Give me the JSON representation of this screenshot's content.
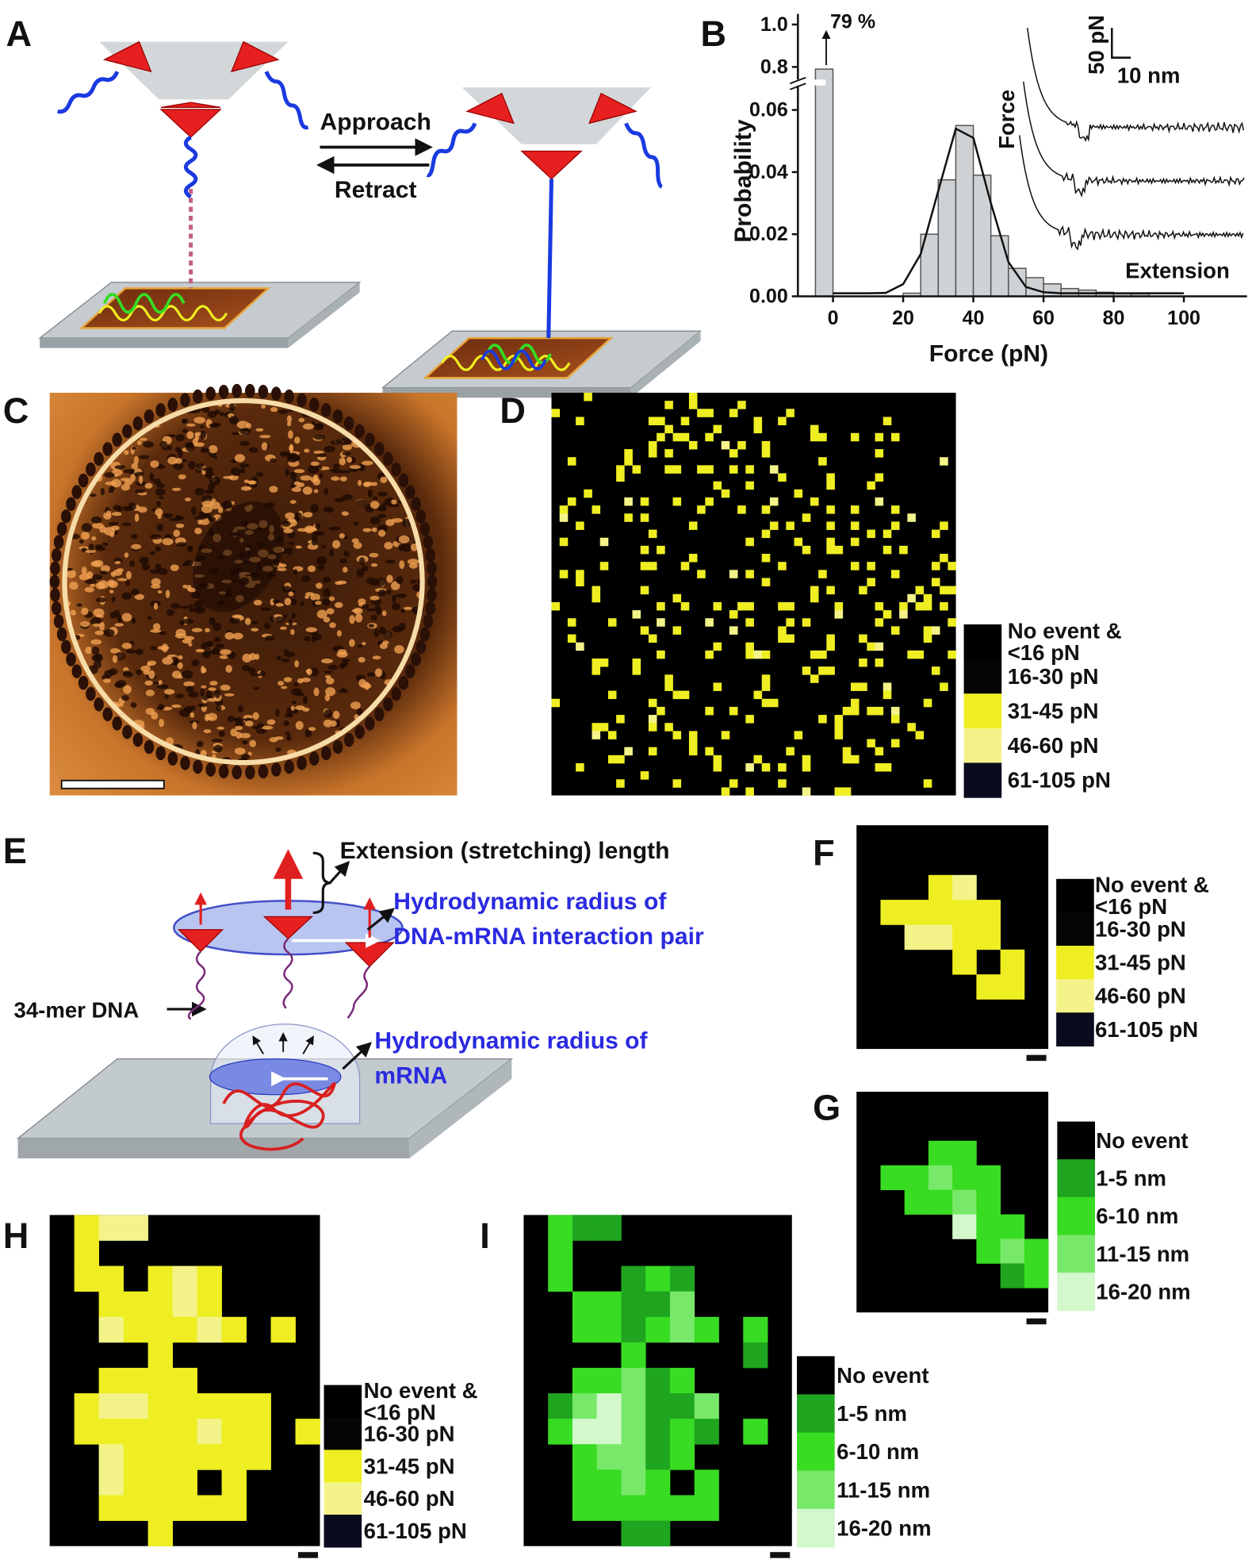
{
  "A": {
    "label": "A",
    "approach": "Approach",
    "retract": "Retract"
  },
  "B": {
    "label": "B",
    "type": "histogram",
    "ylabel": "Probability",
    "xlabel": "Force (pN)",
    "bins": [
      -5,
      0,
      5,
      10,
      15,
      20,
      25,
      30,
      35,
      40,
      45,
      50,
      55,
      60,
      65,
      70,
      75,
      80,
      85,
      90
    ],
    "values": [
      0.79,
      0,
      0,
      0,
      0,
      0.001,
      0.02,
      0.0375,
      0.055,
      0.039,
      0.0195,
      0.009,
      0.006,
      0.004,
      0.0025,
      0.002,
      0.0013,
      0.001,
      0.0008
    ],
    "value_labels": [
      "79 %",
      null,
      null,
      null,
      null,
      null,
      null,
      null,
      null,
      null,
      null,
      null,
      null,
      null,
      null,
      null,
      null,
      null,
      null
    ],
    "color": "#cfd2d4",
    "fit": {
      "x": [
        0,
        5,
        10,
        15,
        20,
        25,
        30,
        35,
        40,
        45,
        50,
        55,
        60,
        65,
        70,
        75,
        80,
        85,
        90,
        95,
        100
      ],
      "y": [
        0.001,
        0.001,
        0.001,
        0.0011,
        0.0039,
        0.0136,
        0.034,
        0.054,
        0.051,
        0.03,
        0.011,
        0.003,
        0.0013,
        0.001,
        0.001,
        0.001,
        0.001,
        0.001,
        0.001,
        0.001,
        0.001
      ]
    },
    "xlim": [
      -10,
      118
    ],
    "ylim": [
      0,
      1.05
    ],
    "axis_break": [
      0.065,
      0.75
    ],
    "xticks": [
      0,
      20,
      40,
      60,
      80,
      100
    ],
    "yticks": [
      {
        "value": 0,
        "label": "0.00"
      },
      0.02,
      0.04,
      0.06,
      0.8,
      {
        "value": 1,
        "label": "1.0"
      }
    ],
    "scale_bar": {
      "force": "50 pN",
      "extension": "10 nm"
    },
    "trace_labels": {
      "y": "Force",
      "x": "Extension"
    }
  },
  "C": {
    "label": "C"
  },
  "D": {
    "label": "D",
    "legend": [
      {
        "label": [
          "No event &",
          "<16 pN"
        ],
        "color": "#000000"
      },
      {
        "label": [
          "16-30 pN"
        ],
        "color": "#050505"
      },
      {
        "label": [
          "31-45 pN"
        ],
        "color": "#eeee22"
      },
      {
        "label": [
          "46-60 pN"
        ],
        "color": "#f3f38a"
      },
      {
        "label": [
          "61-105 pN"
        ],
        "color": "#0b0b1e"
      }
    ]
  },
  "E": {
    "label": "E",
    "extension": "Extension (stretching) length",
    "hydro_pair": [
      "Hydrodynamic radius of",
      "DNA-mRNA interaction pair"
    ],
    "dna": "34-mer DNA",
    "hydro_mrna": [
      "Hydrodynamic radius of",
      "mRNA"
    ]
  },
  "F": {
    "label": "F",
    "legend": [
      {
        "label": [
          "No event &",
          "<16 pN"
        ],
        "color": "#000000"
      },
      {
        "label": [
          "16-30 pN"
        ],
        "color": "#050505"
      },
      {
        "label": [
          "31-45 pN"
        ],
        "color": "#eeee22"
      },
      {
        "label": [
          "46-60 pN"
        ],
        "color": "#f3f38a"
      },
      {
        "label": [
          "61-105 pN"
        ],
        "color": "#0b0b1e"
      }
    ],
    "grid": [
      "00000000",
      "00000000",
      "00023000",
      "02222200",
      "00332200",
      "00002020",
      "00000220",
      "00000000",
      "00000000"
    ]
  },
  "G": {
    "label": "G",
    "legend": [
      {
        "label": [
          "No event"
        ],
        "color": "#000000"
      },
      {
        "label": [
          "1-5 nm"
        ],
        "color": "#1fa51f"
      },
      {
        "label": [
          "6-10 nm"
        ],
        "color": "#38dc22"
      },
      {
        "label": [
          "11-15 nm"
        ],
        "color": "#78e86a"
      },
      {
        "label": [
          "16-20 nm"
        ],
        "color": "#d2f8cc"
      }
    ],
    "grid": [
      "00000000",
      "00000000",
      "00022000",
      "02232200",
      "00223200",
      "00004220",
      "00000232",
      "00000012",
      "00000000"
    ]
  },
  "H": {
    "label": "H",
    "legend": [
      {
        "label": [
          "No event &",
          "<16 pN"
        ],
        "color": "#000000"
      },
      {
        "label": [
          "16-30 pN"
        ],
        "color": "#050505"
      },
      {
        "label": [
          "31-45 pN"
        ],
        "color": "#eeee22"
      },
      {
        "label": [
          "46-60 pN"
        ],
        "color": "#f3f38a"
      },
      {
        "label": [
          "61-105 pN"
        ],
        "color": "#0b0b1e"
      }
    ],
    "grid": [
      "02330000000",
      "02000000000",
      "02202320000",
      "00222320000",
      "00322232020",
      "00002000000",
      "00222200000",
      "02332222200",
      "02222232202",
      "00322222200",
      "00322202000",
      "00222222000",
      "00002000000"
    ]
  },
  "I": {
    "label": "I",
    "legend": [
      {
        "label": [
          "No event"
        ],
        "color": "#000000"
      },
      {
        "label": [
          "1-5 nm"
        ],
        "color": "#1fa51f"
      },
      {
        "label": [
          "6-10 nm"
        ],
        "color": "#38dc22"
      },
      {
        "label": [
          "11-15 nm"
        ],
        "color": "#78e86a"
      },
      {
        "label": [
          "16-20 nm"
        ],
        "color": "#d2f8cc"
      }
    ],
    "grid": [
      "02110000000",
      "02000000000",
      "02001210000",
      "00221130000",
      "00221232020",
      "00002000010",
      "00223120000",
      "01343113000",
      "02443121020",
      "00233120000",
      "00223202000",
      "00222222000",
      "00001100000"
    ]
  }
}
